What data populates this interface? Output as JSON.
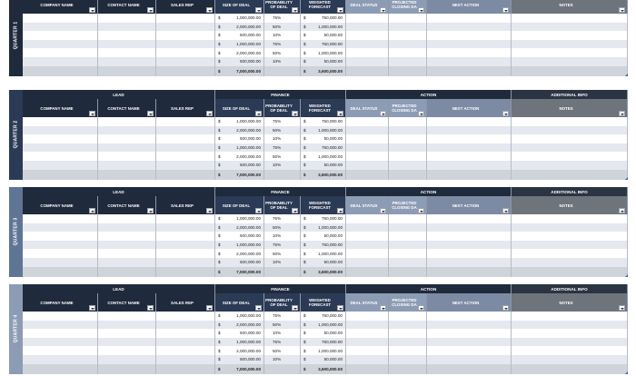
{
  "group_headers": {
    "lead": "LEAD",
    "finance": "FINANCE",
    "action": "ACTION",
    "additional_info": "ADDITIONAL INFO"
  },
  "column_headers": {
    "company_name": "COMPANY NAME",
    "contact_name": "CONTACT NAME",
    "sales_rep": "SALES REP",
    "size_of_deal": "SIZE OF DEAL",
    "probability_of_deal": "PROBABILITY OF DEAL",
    "weighted_forecast": "WEIGHTED FORECAST",
    "deal_status": "DEAL STATUS",
    "projected_closing_date": "PROJECTED CLOSING DA",
    "next_action": "NEXT ACTION",
    "notes": "NOTES"
  },
  "currency_symbol": "$",
  "quarters": [
    {
      "label": "QUARTER 1",
      "color": "#1f2a3c",
      "rows": [
        {
          "size": "1,000,000.00",
          "prob": "75%",
          "forecast": "750,000.00"
        },
        {
          "size": "2,000,000.00",
          "prob": "50%",
          "forecast": "1,000,000.00"
        },
        {
          "size": "500,000.00",
          "prob": "10%",
          "forecast": "50,000.00"
        },
        {
          "size": "1,000,000.00",
          "prob": "75%",
          "forecast": "750,000.00"
        },
        {
          "size": "2,000,000.00",
          "prob": "50%",
          "forecast": "1,000,000.00"
        },
        {
          "size": "500,000.00",
          "prob": "10%",
          "forecast": "50,000.00"
        }
      ],
      "total_size": "7,000,000.00",
      "total_forecast": "3,600,000.00"
    },
    {
      "label": "QUARTER 2",
      "color": "#2b3a55",
      "rows": [
        {
          "size": "1,000,000.00",
          "prob": "75%",
          "forecast": "750,000.00"
        },
        {
          "size": "2,000,000.00",
          "prob": "50%",
          "forecast": "1,000,000.00"
        },
        {
          "size": "500,000.00",
          "prob": "10%",
          "forecast": "50,000.00"
        },
        {
          "size": "1,000,000.00",
          "prob": "75%",
          "forecast": "750,000.00"
        },
        {
          "size": "2,000,000.00",
          "prob": "50%",
          "forecast": "1,000,000.00"
        },
        {
          "size": "500,000.00",
          "prob": "10%",
          "forecast": "50,000.00"
        }
      ],
      "total_size": "7,000,000.00",
      "total_forecast": "3,600,000.00"
    },
    {
      "label": "QUARTER 3",
      "color": "#5f7596",
      "rows": [
        {
          "size": "1,000,000.00",
          "prob": "75%",
          "forecast": "750,000.00"
        },
        {
          "size": "2,000,000.00",
          "prob": "50%",
          "forecast": "1,000,000.00"
        },
        {
          "size": "500,000.00",
          "prob": "10%",
          "forecast": "50,000.00"
        },
        {
          "size": "1,000,000.00",
          "prob": "75%",
          "forecast": "750,000.00"
        },
        {
          "size": "2,000,000.00",
          "prob": "50%",
          "forecast": "1,000,000.00"
        },
        {
          "size": "500,000.00",
          "prob": "10%",
          "forecast": "50,000.00"
        }
      ],
      "total_size": "7,000,000.00",
      "total_forecast": "3,600,000.00"
    },
    {
      "label": "QUARTER 4",
      "color": "#8d9cb5",
      "rows": [
        {
          "size": "1,000,000.00",
          "prob": "75%",
          "forecast": "750,000.00"
        },
        {
          "size": "2,000,000.00",
          "prob": "50%",
          "forecast": "1,000,000.00"
        },
        {
          "size": "500,000.00",
          "prob": "10%",
          "forecast": "50,000.00"
        },
        {
          "size": "1,000,000.00",
          "prob": "75%",
          "forecast": "750,000.00"
        },
        {
          "size": "2,000,000.00",
          "prob": "50%",
          "forecast": "1,000,000.00"
        },
        {
          "size": "500,000.00",
          "prob": "10%",
          "forecast": "50,000.00"
        }
      ],
      "total_size": "7,000,000.00",
      "total_forecast": "3,600,000.00"
    }
  ]
}
